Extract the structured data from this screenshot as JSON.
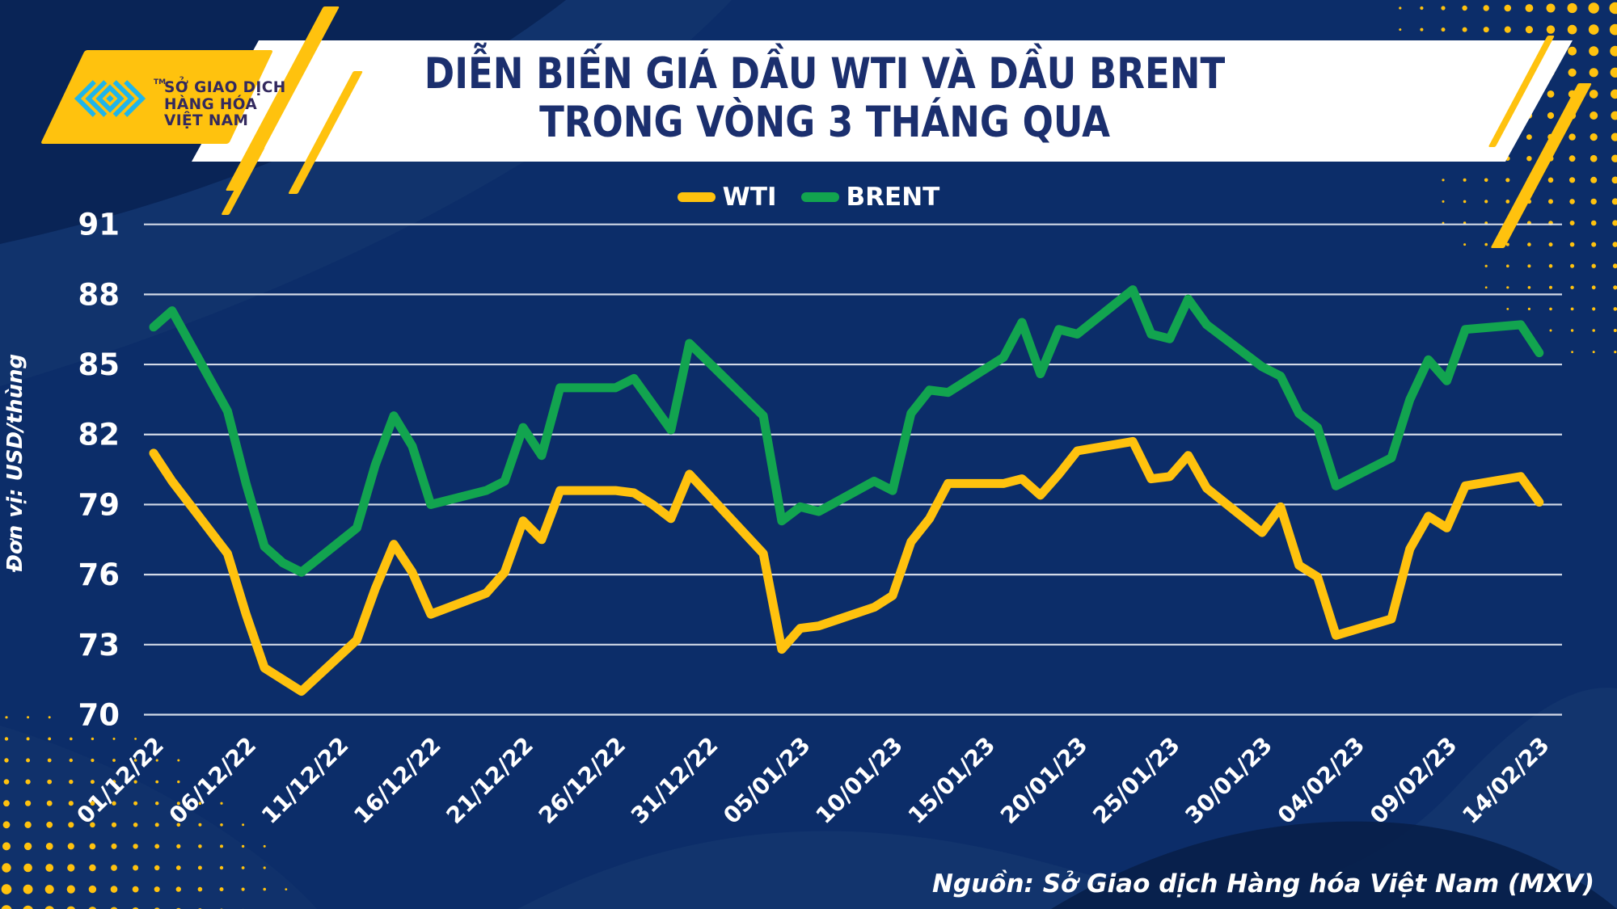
{
  "brand": {
    "org_lines": [
      "SỞ GIAO DỊCH",
      "HÀNG HÓA",
      "VIỆT NAM"
    ],
    "tm": "TM"
  },
  "title": {
    "line1": "DIỄN BIẾN GIÁ DẦU WTI VÀ DẦU BRENT",
    "line2": "TRONG VÒNG 3 THÁNG QUA"
  },
  "legend": [
    {
      "label": "WTI",
      "color": "#FFC20E"
    },
    {
      "label": "BRENT",
      "color": "#12A44F"
    }
  ],
  "y_axis": {
    "unit_label": "Đơn vị: USD/thùng",
    "ticks": [
      70,
      73,
      76,
      79,
      82,
      85,
      88,
      91
    ]
  },
  "x_axis": {
    "tick_labels": [
      "01/12/22",
      "06/12/22",
      "11/12/22",
      "16/12/22",
      "21/12/22",
      "26/12/22",
      "31/12/22",
      "05/01/23",
      "10/01/23",
      "15/01/23",
      "20/01/23",
      "25/01/23",
      "30/01/23",
      "04/02/23",
      "09/02/23",
      "14/02/23"
    ]
  },
  "source": "Nguồn: Sở Giao dịch Hàng hóa Việt Nam (MXV)",
  "colors": {
    "background": "#0C2D69",
    "banner": "#FFFFFF",
    "title_text": "#1B2F6E",
    "accent_yellow": "#FFC20E",
    "accent_green": "#12A44F",
    "logo_cyan": "#1FB5EA",
    "logo_text": "#33295E",
    "axis_text": "#FFFFFF",
    "gridline": "#E9EDF5",
    "swoosh_light": "#16386F",
    "swoosh_dark": "#081F49"
  },
  "chart_data": {
    "type": "line",
    "title": "DIỄN BIẾN GIÁ DẦU WTI VÀ DẦU BRENT TRONG VÒNG 3 THÁNG QUA",
    "ylabel": "Đơn vị: USD/thùng",
    "ylim": [
      70,
      91
    ],
    "grid": true,
    "legend_position": "top-center",
    "x": [
      "2022-12-01",
      "2022-12-02",
      "2022-12-05",
      "2022-12-06",
      "2022-12-07",
      "2022-12-08",
      "2022-12-09",
      "2022-12-12",
      "2022-12-13",
      "2022-12-14",
      "2022-12-15",
      "2022-12-16",
      "2022-12-19",
      "2022-12-20",
      "2022-12-21",
      "2022-12-22",
      "2022-12-23",
      "2022-12-26",
      "2022-12-27",
      "2022-12-28",
      "2022-12-29",
      "2022-12-30",
      "2023-01-03",
      "2023-01-04",
      "2023-01-05",
      "2023-01-06",
      "2023-01-09",
      "2023-01-10",
      "2023-01-11",
      "2023-01-12",
      "2023-01-13",
      "2023-01-16",
      "2023-01-17",
      "2023-01-18",
      "2023-01-19",
      "2023-01-20",
      "2023-01-23",
      "2023-01-24",
      "2023-01-25",
      "2023-01-26",
      "2023-01-27",
      "2023-01-30",
      "2023-01-31",
      "2023-02-01",
      "2023-02-02",
      "2023-02-03",
      "2023-02-06",
      "2023-02-07",
      "2023-02-08",
      "2023-02-09",
      "2023-02-10",
      "2023-02-13",
      "2023-02-14"
    ],
    "series": [
      {
        "name": "WTI",
        "color": "#FFC20E",
        "values": [
          81.2,
          80.0,
          76.9,
          74.3,
          72.0,
          71.5,
          71.0,
          73.2,
          75.4,
          77.3,
          76.1,
          74.3,
          75.2,
          76.1,
          78.3,
          77.5,
          79.6,
          79.6,
          79.5,
          79.0,
          78.4,
          80.3,
          76.9,
          72.8,
          73.7,
          73.8,
          74.6,
          75.1,
          77.4,
          78.4,
          79.9,
          79.9,
          80.1,
          79.4,
          80.3,
          81.3,
          81.7,
          80.1,
          80.2,
          81.1,
          79.7,
          77.8,
          78.9,
          76.4,
          75.9,
          73.4,
          74.1,
          77.1,
          78.5,
          78.0,
          79.8,
          80.2,
          79.1
        ]
      },
      {
        "name": "BRENT",
        "color": "#12A44F",
        "values": [
          86.6,
          87.3,
          83.0,
          79.9,
          77.2,
          76.5,
          76.1,
          78.0,
          80.7,
          82.8,
          81.5,
          79.0,
          79.6,
          80.0,
          82.3,
          81.1,
          84.0,
          84.0,
          84.4,
          83.3,
          82.2,
          85.9,
          82.8,
          78.3,
          78.9,
          78.7,
          80.0,
          79.6,
          82.9,
          83.9,
          83.8,
          85.3,
          86.8,
          84.6,
          86.5,
          86.3,
          88.2,
          86.3,
          86.1,
          87.8,
          86.7,
          84.9,
          84.5,
          82.9,
          82.3,
          79.8,
          81.0,
          83.5,
          85.2,
          84.3,
          86.5,
          86.7,
          85.5
        ]
      }
    ]
  }
}
